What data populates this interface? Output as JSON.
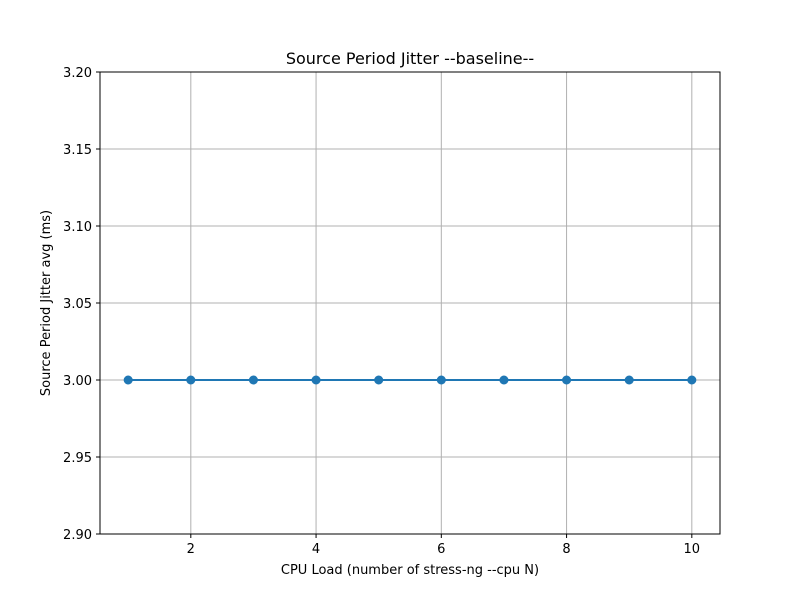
{
  "chart_data": {
    "type": "line",
    "title": "Source Period Jitter --baseline--",
    "xlabel": "CPU Load (number of stress-ng --cpu N)",
    "ylabel": "Source Period Jitter avg (ms)",
    "x": [
      1,
      2,
      3,
      4,
      5,
      6,
      7,
      8,
      9,
      10
    ],
    "series": [
      {
        "values": [
          3.0,
          3.0,
          3.0,
          3.0,
          3.0,
          3.0,
          3.0,
          3.0,
          3.0,
          3.0
        ],
        "color": "#1f77b4",
        "marker": "circle"
      }
    ],
    "xlim": [
      0.55,
      10.45
    ],
    "ylim": [
      2.9,
      3.2
    ],
    "xticks": [
      2,
      4,
      6,
      8,
      10
    ],
    "xtick_labels": [
      "2",
      "4",
      "6",
      "8",
      "10"
    ],
    "yticks": [
      2.9,
      2.95,
      3.0,
      3.05,
      3.1,
      3.15,
      3.2
    ],
    "ytick_labels": [
      "2.90",
      "2.95",
      "3.00",
      "3.05",
      "3.10",
      "3.15",
      "3.20"
    ],
    "grid": true,
    "legend": "none"
  }
}
